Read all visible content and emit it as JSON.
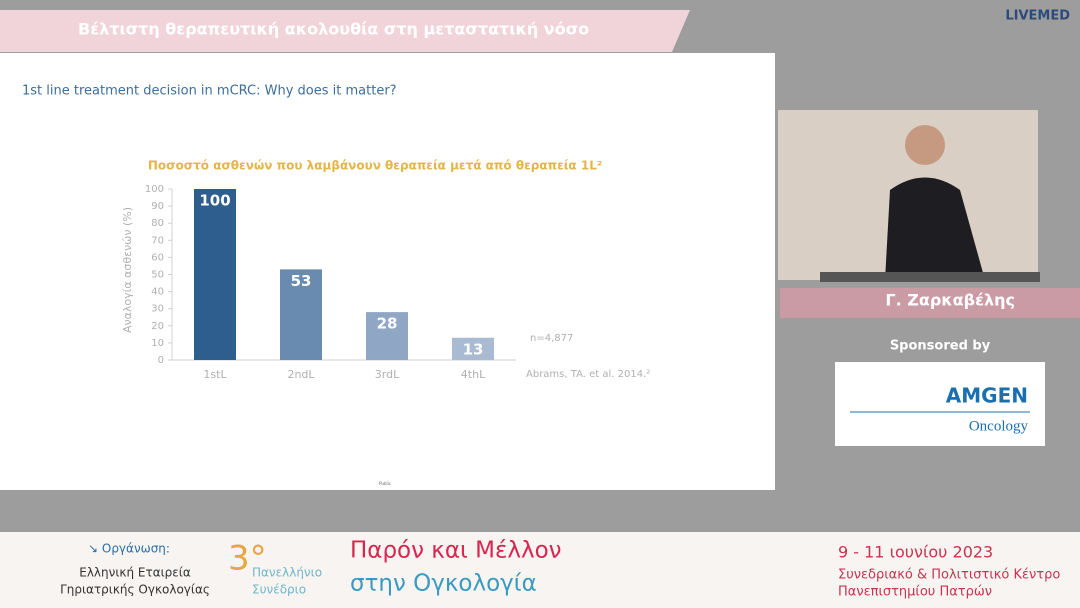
{
  "header": {
    "title": "Βέλτιστη θεραπευτική ακολουθία στη μεταστατική νόσο",
    "brand": "LIVEMED"
  },
  "slide": {
    "subtitle": "1st line treatment decision in mCRC: Why does it matter?",
    "footnote": "Public"
  },
  "chart_data": {
    "type": "bar",
    "title": "Ποσοστό ασθενών που λαμβάνουν θεραπεία μετά από θεραπεία 1L²",
    "y_label": "Αναλογία ασθενών (%)",
    "categories": [
      "1stL",
      "2ndL",
      "3rdL",
      "4thL"
    ],
    "values": [
      100,
      53,
      28,
      13
    ],
    "colors": [
      "#2d5e8e",
      "#6a8bb0",
      "#8fa7c5",
      "#a9bbd3"
    ],
    "ylim": [
      0,
      100
    ],
    "yticks": [
      0,
      10,
      20,
      30,
      40,
      50,
      60,
      70,
      80,
      90,
      100
    ],
    "annotations": [
      "n=4,877",
      "Abrams, TA. et al. 2014.²"
    ]
  },
  "speaker": {
    "name": "Γ. Ζαρκαβέλης"
  },
  "sponsor": {
    "label": "Sponsored by",
    "company": "AMGEN",
    "division": "Oncology"
  },
  "footer": {
    "org_label": "↘ Οργάνωση:",
    "org_lines": [
      "Ελληνική Εταιρεία",
      "Γηριατρικής Ογκολογίας"
    ],
    "edition": "3°",
    "edition_lines": [
      "Πανελλήνιο",
      "Συνέδριο"
    ],
    "congress_lines": [
      "Παρόν και Μέλλον",
      "στην Ογκολογία"
    ],
    "dates": "9 - 11 ιουνίου 2023",
    "venue_lines": [
      "Συνεδριακό & Πολιτιστικό Κέντρο",
      "Πανεπιστημίου Πατρών"
    ]
  }
}
